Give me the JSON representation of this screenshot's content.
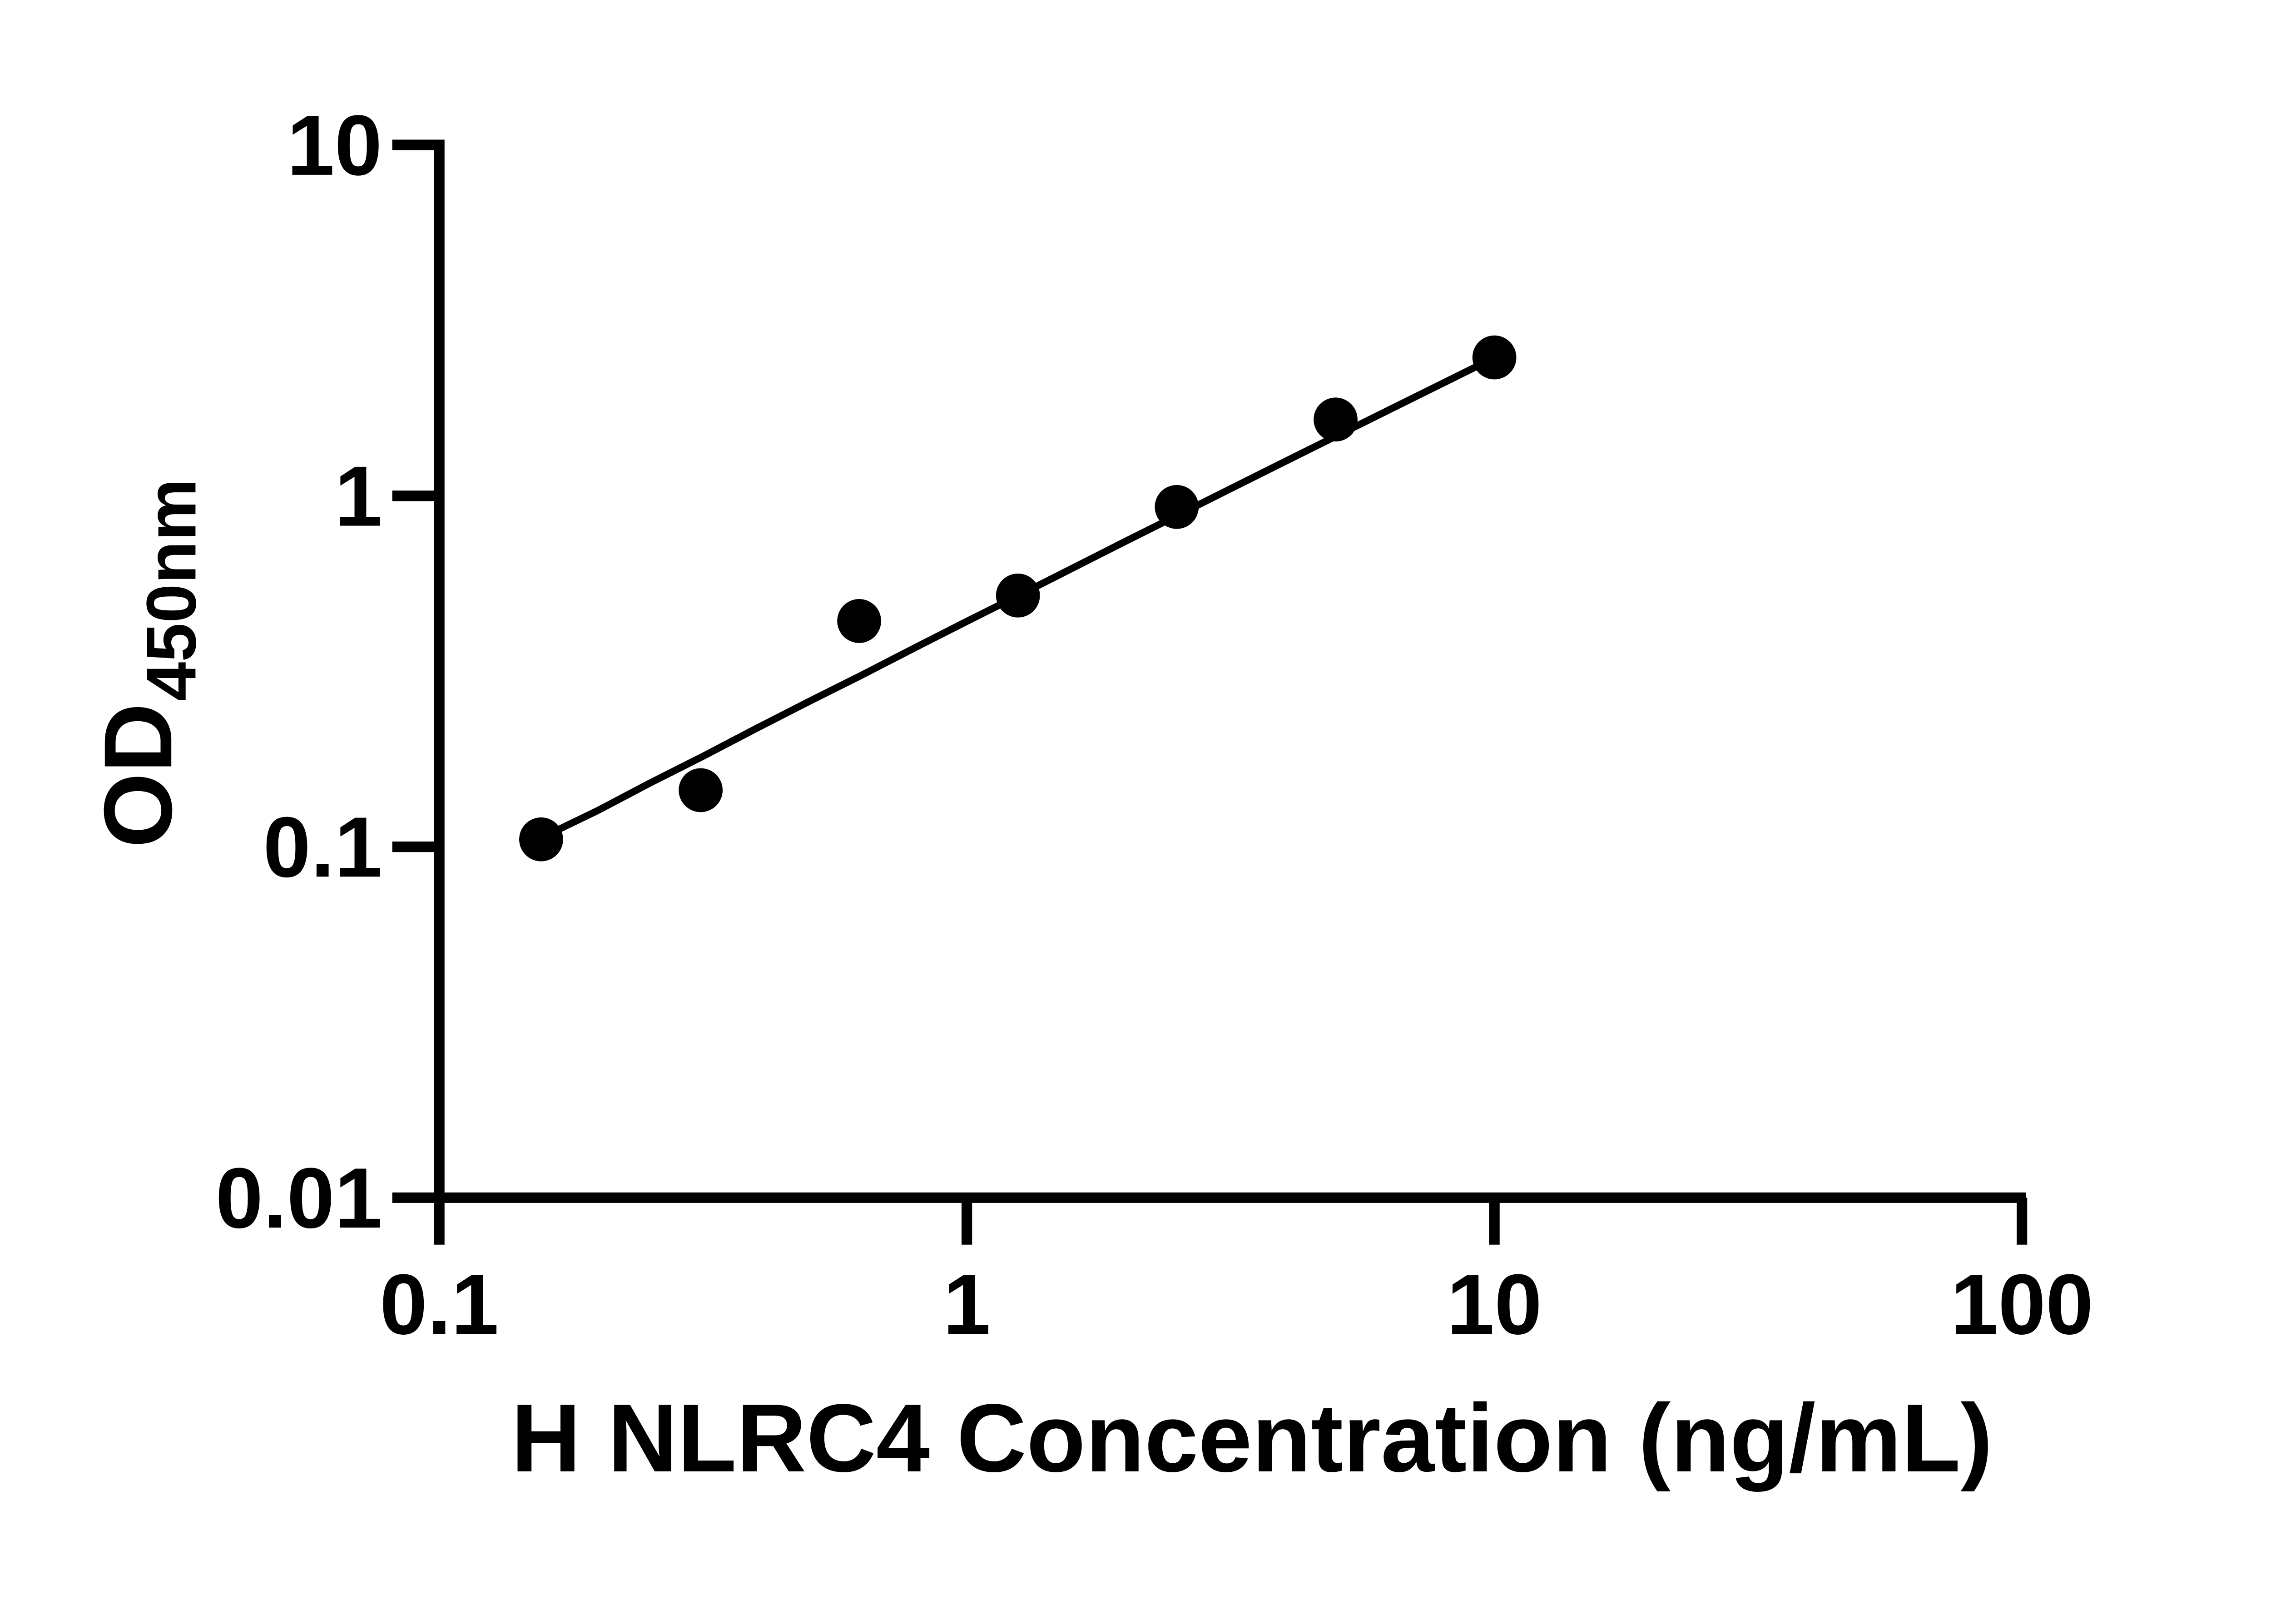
{
  "figure": {
    "background_color": "#ffffff",
    "ink_color": "#000000"
  },
  "chart_data": {
    "type": "scatter",
    "title": "",
    "xlabel": "H NLRC4 Concentration (ng/mL)",
    "ylabel_main": "OD",
    "ylabel_sub": "450nm",
    "xscale": "log",
    "yscale": "log",
    "xlim": [
      0.1,
      100
    ],
    "ylim": [
      0.01,
      10
    ],
    "x_ticks": [
      "0.1",
      "1",
      "10",
      "100"
    ],
    "x_tick_values": [
      0.1,
      1,
      10,
      100
    ],
    "y_ticks": [
      "10",
      "1",
      "0.1",
      "0.01"
    ],
    "y_tick_values": [
      10,
      1,
      0.1,
      0.01
    ],
    "grid": "off",
    "legend": "none",
    "marker_color": "#000000",
    "line_color": "#000000",
    "series_name": "standard-curve",
    "points": [
      {
        "x": 0.156,
        "od": 0.105
      },
      {
        "x": 0.313,
        "od": 0.145
      },
      {
        "x": 0.625,
        "od": 0.44
      },
      {
        "x": 1.25,
        "od": 0.52
      },
      {
        "x": 2.5,
        "od": 0.93
      },
      {
        "x": 5,
        "od": 1.65
      },
      {
        "x": 10,
        "od": 2.48
      }
    ],
    "fit_curve": [
      [
        0.156,
        0.106
      ],
      [
        0.2,
        0.127
      ],
      [
        0.251,
        0.152
      ],
      [
        0.316,
        0.181
      ],
      [
        0.398,
        0.217
      ],
      [
        0.501,
        0.259
      ],
      [
        0.631,
        0.308
      ],
      [
        0.794,
        0.368
      ],
      [
        1.0,
        0.439
      ],
      [
        1.259,
        0.522
      ],
      [
        1.585,
        0.622
      ],
      [
        1.995,
        0.741
      ],
      [
        2.512,
        0.881
      ],
      [
        3.162,
        1.048
      ],
      [
        3.981,
        1.246
      ],
      [
        5.012,
        1.48
      ],
      [
        6.31,
        1.757
      ],
      [
        7.943,
        2.086
      ],
      [
        10.0,
        2.477
      ]
    ]
  }
}
